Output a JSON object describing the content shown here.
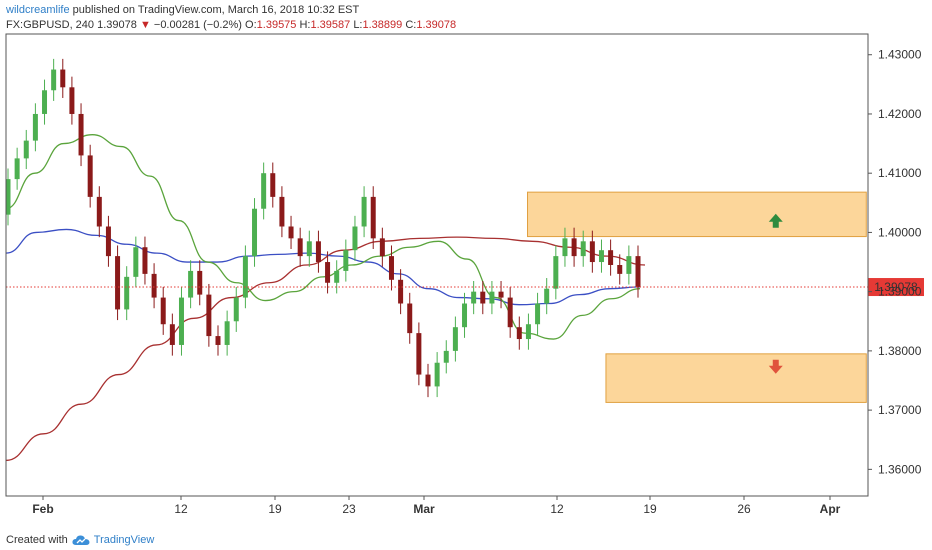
{
  "header": {
    "author": "wildcreamlife",
    "published": "published on TradingView.com, March 16, 2018 10:32 EST"
  },
  "info": {
    "symbol": "FX:GBPUSD, 240",
    "last": "1.39078",
    "change_arrow": "▼",
    "change": "−0.00281 (−0.2%)",
    "open_label": "O:",
    "open": "1.39575",
    "high_label": "H:",
    "high": "1.39587",
    "low_label": "L:",
    "low": "1.38899",
    "close_label": "C:",
    "close": "1.39078"
  },
  "footer": {
    "created_with": "Created with",
    "brand": "TradingView"
  },
  "colors": {
    "up": "#4caf50",
    "down": "#8b1a1a",
    "ma_short": "#5aa43c",
    "ma_mid": "#3b4fc4",
    "ma_long": "#a83030",
    "zone_fill": "#fcd69a",
    "zone_border": "#e0a040",
    "price_line": "#e53935",
    "arrow_up": "#2e8b3e",
    "arrow_down": "#e0533c"
  },
  "chart_data": {
    "type": "candlestick",
    "y_ticks": [
      "1.43000",
      "1.42000",
      "1.41000",
      "1.40000",
      "1.39000",
      "1.38000",
      "1.37000",
      "1.36000"
    ],
    "x_ticks": [
      "Feb",
      "12",
      "19",
      "23",
      "Mar",
      "12",
      "19",
      "26",
      "Apr"
    ],
    "month_ticks": [
      "Feb",
      "Mar",
      "Apr"
    ],
    "ylim": [
      1.3555,
      1.4335
    ],
    "current_price": 1.39078,
    "current_price_label": "1.39078",
    "zones": [
      {
        "name": "resistance",
        "y_low": 1.3993,
        "y_high": 1.4068,
        "x_start": 60.5,
        "x_end": 99.8
      },
      {
        "name": "support",
        "y_low": 1.3713,
        "y_high": 1.3795,
        "x_start": 69.6,
        "x_end": 99.8
      }
    ],
    "arrows": [
      {
        "direction": "up",
        "x": 89.3,
        "y": 1.4018
      },
      {
        "direction": "down",
        "x": 89.3,
        "y": 1.3775
      }
    ],
    "candles_note": "4h candles; prices read from grid",
    "candles": [
      [
        1.403,
        1.409
      ],
      [
        1.409,
        1.4125
      ],
      [
        1.4125,
        1.4155
      ],
      [
        1.4155,
        1.42
      ],
      [
        1.42,
        1.424
      ],
      [
        1.424,
        1.4275
      ],
      [
        1.4275,
        1.4245
      ],
      [
        1.4245,
        1.42
      ],
      [
        1.42,
        1.413
      ],
      [
        1.413,
        1.406
      ],
      [
        1.406,
        1.401
      ],
      [
        1.401,
        1.396
      ],
      [
        1.396,
        1.387
      ],
      [
        1.387,
        1.3925
      ],
      [
        1.3925,
        1.3975
      ],
      [
        1.3975,
        1.393
      ],
      [
        1.393,
        1.389
      ],
      [
        1.389,
        1.3845
      ],
      [
        1.3845,
        1.381
      ],
      [
        1.381,
        1.389
      ],
      [
        1.389,
        1.3935
      ],
      [
        1.3935,
        1.3895
      ],
      [
        1.3895,
        1.3825
      ],
      [
        1.3825,
        1.381
      ],
      [
        1.381,
        1.385
      ],
      [
        1.385,
        1.389
      ],
      [
        1.389,
        1.396
      ],
      [
        1.396,
        1.404
      ],
      [
        1.404,
        1.41
      ],
      [
        1.41,
        1.406
      ],
      [
        1.406,
        1.401
      ],
      [
        1.401,
        1.399
      ],
      [
        1.399,
        1.396
      ],
      [
        1.396,
        1.3985
      ],
      [
        1.3985,
        1.395
      ],
      [
        1.395,
        1.3915
      ],
      [
        1.3915,
        1.3935
      ],
      [
        1.3935,
        1.397
      ],
      [
        1.397,
        1.401
      ],
      [
        1.401,
        1.406
      ],
      [
        1.406,
        1.399
      ],
      [
        1.399,
        1.396
      ],
      [
        1.396,
        1.392
      ],
      [
        1.392,
        1.388
      ],
      [
        1.388,
        1.383
      ],
      [
        1.383,
        1.376
      ],
      [
        1.376,
        1.374
      ],
      [
        1.374,
        1.378
      ],
      [
        1.378,
        1.38
      ],
      [
        1.38,
        1.384
      ],
      [
        1.384,
        1.388
      ],
      [
        1.388,
        1.39
      ],
      [
        1.39,
        1.388
      ],
      [
        1.388,
        1.39
      ],
      [
        1.39,
        1.389
      ],
      [
        1.389,
        1.384
      ],
      [
        1.384,
        1.382
      ],
      [
        1.382,
        1.3845
      ],
      [
        1.3845,
        1.388
      ],
      [
        1.388,
        1.3905
      ],
      [
        1.3905,
        1.396
      ],
      [
        1.396,
        1.399
      ],
      [
        1.399,
        1.396
      ],
      [
        1.396,
        1.3985
      ],
      [
        1.3985,
        1.395
      ],
      [
        1.395,
        1.397
      ],
      [
        1.397,
        1.3945
      ],
      [
        1.3945,
        1.393
      ],
      [
        1.393,
        1.396
      ],
      [
        1.396,
        1.3908
      ]
    ],
    "ma_short": [
      1.404,
      1.41,
      1.415,
      1.4165,
      1.4145,
      1.4095,
      1.402,
      1.395,
      1.3915,
      1.3885,
      1.39,
      1.3925,
      1.3945,
      1.396,
      1.3975,
      1.3985,
      1.3955,
      1.389,
      1.383,
      1.382,
      1.386,
      1.3888,
      1.3905
    ],
    "ma_mid": [
      1.3965,
      1.4,
      1.4005,
      1.3995,
      1.398,
      1.3965,
      1.395,
      1.395,
      1.396,
      1.3963,
      1.3965,
      1.396,
      1.395,
      1.393,
      1.3905,
      1.389,
      1.3888,
      1.3878,
      1.388,
      1.3895,
      1.3905,
      1.3908
    ],
    "ma_long": [
      1.3615,
      1.366,
      1.371,
      1.376,
      1.381,
      1.3855,
      1.389,
      1.3915,
      1.3945,
      1.397,
      1.3985,
      1.399,
      1.3992,
      1.399,
      1.3985,
      1.3975,
      1.396,
      1.3945
    ]
  }
}
